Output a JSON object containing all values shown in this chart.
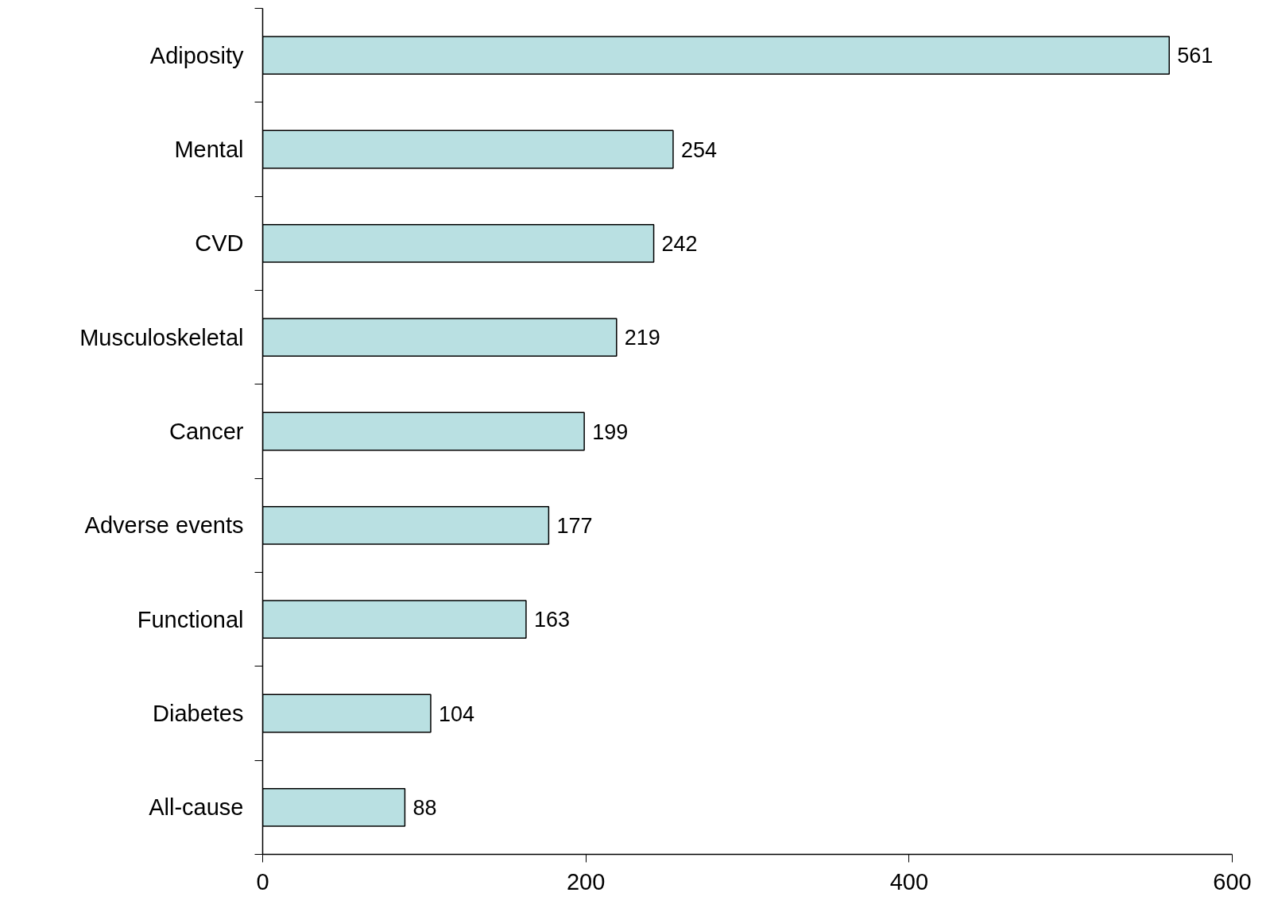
{
  "chart_data": {
    "type": "bar",
    "orientation": "horizontal",
    "categories": [
      "Adiposity",
      "Mental",
      "CVD",
      "Musculoskeletal",
      "Cancer",
      "Adverse events",
      "Functional",
      "Diabetes",
      "All-cause"
    ],
    "values": [
      561,
      254,
      242,
      219,
      199,
      177,
      163,
      104,
      88
    ],
    "color": "#b9e0e2",
    "xlim": [
      0,
      600
    ],
    "xticks": [
      0,
      200,
      400,
      600
    ],
    "data_labels": true,
    "grid": false
  }
}
